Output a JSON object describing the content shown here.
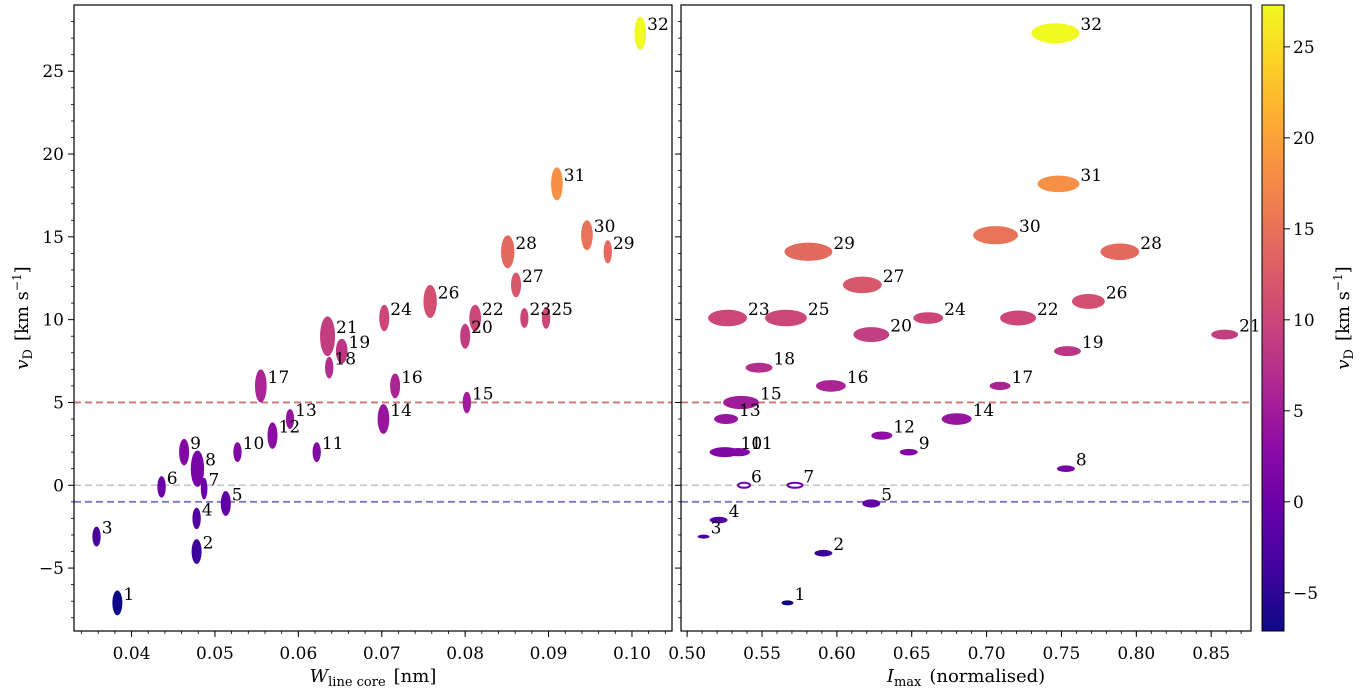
{
  "chart_data": [
    {
      "type": "scatter",
      "xlabel_main": "W",
      "xlabel_sub": "line core",
      "xlabel_unit": "[nm]",
      "ylabel_main": "v",
      "ylabel_sub": "D",
      "ylabel_unit": "[km s",
      "ylabel_exp": "−1",
      "ylabel_close": "]",
      "xlim": [
        0.0331,
        0.1048
      ],
      "ylim": [
        -8.8,
        29.0
      ],
      "xticks": [
        0.04,
        0.05,
        0.06,
        0.07,
        0.08,
        0.09,
        0.1
      ],
      "xtick_labels": [
        "0.04",
        "0.05",
        "0.06",
        "0.07",
        "0.08",
        "0.09",
        "0.10"
      ],
      "yticks": [
        -5,
        0,
        5,
        10,
        15,
        20,
        25
      ],
      "ytick_labels": [
        "−5",
        "0",
        "5",
        "10",
        "15",
        "20",
        "25"
      ],
      "hlines": [
        {
          "y": 5,
          "color": "#cd7572"
        },
        {
          "y": 0,
          "color": "#c8c8c8"
        },
        {
          "y": -1,
          "color": "#7b78c7"
        }
      ],
      "points": [
        {
          "label": "1",
          "x": 0.0383,
          "y": -7.1,
          "xerr": 0.0006,
          "yerr": 0.75
        },
        {
          "label": "2",
          "x": 0.0478,
          "y": -4.0,
          "xerr": 0.0006,
          "yerr": 0.75
        },
        {
          "label": "3",
          "x": 0.0358,
          "y": -3.1,
          "xerr": 0.0005,
          "yerr": 0.6
        },
        {
          "label": "4",
          "x": 0.0478,
          "y": -2.0,
          "xerr": 0.0005,
          "yerr": 0.65
        },
        {
          "label": "5",
          "x": 0.0513,
          "y": -1.1,
          "xerr": 0.0006,
          "yerr": 0.75
        },
        {
          "label": "6",
          "x": 0.0436,
          "y": -0.1,
          "xerr": 0.0005,
          "yerr": 0.65
        },
        {
          "label": "7",
          "x": 0.0487,
          "y": -0.2,
          "xerr": 0.0004,
          "yerr": 0.65
        },
        {
          "label": "8",
          "x": 0.0479,
          "y": 1.0,
          "xerr": 0.0008,
          "yerr": 1.1
        },
        {
          "label": "9",
          "x": 0.0463,
          "y": 2.0,
          "xerr": 0.0006,
          "yerr": 0.8
        },
        {
          "label": "10",
          "x": 0.0527,
          "y": 2.0,
          "xerr": 0.0005,
          "yerr": 0.6
        },
        {
          "label": "11",
          "x": 0.0622,
          "y": 2.0,
          "xerr": 0.0005,
          "yerr": 0.6
        },
        {
          "label": "12",
          "x": 0.0569,
          "y": 3.0,
          "xerr": 0.0006,
          "yerr": 0.8
        },
        {
          "label": "13",
          "x": 0.059,
          "y": 4.0,
          "xerr": 0.0005,
          "yerr": 0.6
        },
        {
          "label": "14",
          "x": 0.0702,
          "y": 4.0,
          "xerr": 0.0007,
          "yerr": 0.9
        },
        {
          "label": "15",
          "x": 0.0802,
          "y": 5.0,
          "xerr": 0.0005,
          "yerr": 0.65
        },
        {
          "label": "16",
          "x": 0.0716,
          "y": 6.0,
          "xerr": 0.0006,
          "yerr": 0.75
        },
        {
          "label": "17",
          "x": 0.0555,
          "y": 6.0,
          "xerr": 0.0007,
          "yerr": 1.0
        },
        {
          "label": "18",
          "x": 0.0637,
          "y": 7.1,
          "xerr": 0.0005,
          "yerr": 0.65
        },
        {
          "label": "19",
          "x": 0.0652,
          "y": 8.1,
          "xerr": 0.0007,
          "yerr": 0.75
        },
        {
          "label": "20",
          "x": 0.08,
          "y": 9.0,
          "xerr": 0.0006,
          "yerr": 0.75
        },
        {
          "label": "21",
          "x": 0.0635,
          "y": 9.0,
          "xerr": 0.0009,
          "yerr": 1.2
        },
        {
          "label": "22",
          "x": 0.0812,
          "y": 10.1,
          "xerr": 0.0007,
          "yerr": 0.8
        },
        {
          "label": "23",
          "x": 0.0871,
          "y": 10.1,
          "xerr": 0.0005,
          "yerr": 0.6
        },
        {
          "label": "24",
          "x": 0.0703,
          "y": 10.1,
          "xerr": 0.0006,
          "yerr": 0.8
        },
        {
          "label": "25",
          "x": 0.0897,
          "y": 10.1,
          "xerr": 0.0005,
          "yerr": 0.65
        },
        {
          "label": "26",
          "x": 0.0758,
          "y": 11.1,
          "xerr": 0.0008,
          "yerr": 1.0
        },
        {
          "label": "27",
          "x": 0.0861,
          "y": 12.1,
          "xerr": 0.0006,
          "yerr": 0.75
        },
        {
          "label": "28",
          "x": 0.0851,
          "y": 14.1,
          "xerr": 0.0008,
          "yerr": 1.0
        },
        {
          "label": "29",
          "x": 0.0971,
          "y": 14.1,
          "xerr": 0.0005,
          "yerr": 0.7
        },
        {
          "label": "30",
          "x": 0.0946,
          "y": 15.1,
          "xerr": 0.0007,
          "yerr": 0.9
        },
        {
          "label": "31",
          "x": 0.091,
          "y": 18.2,
          "xerr": 0.0007,
          "yerr": 1.0
        },
        {
          "label": "32",
          "x": 0.101,
          "y": 27.3,
          "xerr": 0.0007,
          "yerr": 1.0
        }
      ]
    },
    {
      "type": "scatter",
      "xlabel_main": "I",
      "xlabel_sub": "max",
      "xlabel_unit": "(normalised)",
      "xlim": [
        0.4959,
        0.8766
      ],
      "ylim": [
        -8.8,
        29.0
      ],
      "xticks": [
        0.5,
        0.55,
        0.6,
        0.65,
        0.7,
        0.75,
        0.8,
        0.85
      ],
      "xtick_labels": [
        "0.50",
        "0.55",
        "0.60",
        "0.65",
        "0.70",
        "0.75",
        "0.80",
        "0.85"
      ],
      "hlines": [
        {
          "y": 5,
          "color": "#cd7572"
        },
        {
          "y": 0,
          "color": "#c8c8c8"
        },
        {
          "y": -1,
          "color": "#7b78c7"
        }
      ],
      "points": [
        {
          "label": "1",
          "x": 0.567,
          "y": -7.1,
          "xerr": 0.004,
          "yerr": 0.15
        },
        {
          "label": "2",
          "x": 0.591,
          "y": -4.1,
          "xerr": 0.006,
          "yerr": 0.2
        },
        {
          "label": "3",
          "x": 0.511,
          "y": -3.1,
          "xerr": 0.004,
          "yerr": 0.12
        },
        {
          "label": "4",
          "x": 0.521,
          "y": -2.1,
          "xerr": 0.006,
          "yerr": 0.2
        },
        {
          "label": "5",
          "x": 0.623,
          "y": -1.1,
          "xerr": 0.006,
          "yerr": 0.25
        },
        {
          "label": "6",
          "x": 0.538,
          "y": 0.0,
          "xerr": 0.004,
          "yerr": 0.15,
          "hollow": true
        },
        {
          "label": "7",
          "x": 0.572,
          "y": 0.0,
          "xerr": 0.005,
          "yerr": 0.15,
          "hollow": true
        },
        {
          "label": "8",
          "x": 0.753,
          "y": 1.0,
          "xerr": 0.006,
          "yerr": 0.2
        },
        {
          "label": "9",
          "x": 0.648,
          "y": 2.0,
          "xerr": 0.006,
          "yerr": 0.2
        },
        {
          "label": "10",
          "x": 0.525,
          "y": 2.0,
          "xerr": 0.01,
          "yerr": 0.3
        },
        {
          "label": "11",
          "x": 0.534,
          "y": 2.0,
          "xerr": 0.008,
          "yerr": 0.25
        },
        {
          "label": "12",
          "x": 0.63,
          "y": 3.0,
          "xerr": 0.007,
          "yerr": 0.25
        },
        {
          "label": "13",
          "x": 0.526,
          "y": 4.0,
          "xerr": 0.008,
          "yerr": 0.3
        },
        {
          "label": "14",
          "x": 0.68,
          "y": 4.0,
          "xerr": 0.01,
          "yerr": 0.35
        },
        {
          "label": "15",
          "x": 0.536,
          "y": 5.0,
          "xerr": 0.012,
          "yerr": 0.4
        },
        {
          "label": "16",
          "x": 0.596,
          "y": 6.0,
          "xerr": 0.01,
          "yerr": 0.35
        },
        {
          "label": "17",
          "x": 0.709,
          "y": 6.0,
          "xerr": 0.007,
          "yerr": 0.25
        },
        {
          "label": "18",
          "x": 0.548,
          "y": 7.1,
          "xerr": 0.009,
          "yerr": 0.3
        },
        {
          "label": "19",
          "x": 0.754,
          "y": 8.1,
          "xerr": 0.009,
          "yerr": 0.3
        },
        {
          "label": "20",
          "x": 0.623,
          "y": 9.1,
          "xerr": 0.012,
          "yerr": 0.45
        },
        {
          "label": "21",
          "x": 0.859,
          "y": 9.1,
          "xerr": 0.009,
          "yerr": 0.3
        },
        {
          "label": "22",
          "x": 0.721,
          "y": 10.1,
          "xerr": 0.012,
          "yerr": 0.45
        },
        {
          "label": "23",
          "x": 0.527,
          "y": 10.1,
          "xerr": 0.013,
          "yerr": 0.5
        },
        {
          "label": "24",
          "x": 0.661,
          "y": 10.1,
          "xerr": 0.01,
          "yerr": 0.35
        },
        {
          "label": "25",
          "x": 0.566,
          "y": 10.1,
          "xerr": 0.014,
          "yerr": 0.5
        },
        {
          "label": "26",
          "x": 0.768,
          "y": 11.1,
          "xerr": 0.011,
          "yerr": 0.45
        },
        {
          "label": "27",
          "x": 0.617,
          "y": 12.1,
          "xerr": 0.013,
          "yerr": 0.5
        },
        {
          "label": "28",
          "x": 0.789,
          "y": 14.1,
          "xerr": 0.013,
          "yerr": 0.5
        },
        {
          "label": "29",
          "x": 0.581,
          "y": 14.1,
          "xerr": 0.016,
          "yerr": 0.55
        },
        {
          "label": "30",
          "x": 0.706,
          "y": 15.1,
          "xerr": 0.015,
          "yerr": 0.55
        },
        {
          "label": "31",
          "x": 0.748,
          "y": 18.2,
          "xerr": 0.014,
          "yerr": 0.5
        },
        {
          "label": "32",
          "x": 0.746,
          "y": 27.3,
          "xerr": 0.016,
          "yerr": 0.6
        }
      ]
    }
  ],
  "colorbar": {
    "colormap": "plasma",
    "range": [
      -7.1,
      27.3
    ],
    "ticks": [
      -5,
      0,
      5,
      10,
      15,
      20,
      25
    ],
    "tick_labels": [
      "−5",
      "0",
      "5",
      "10",
      "15",
      "20",
      "25"
    ],
    "label_main": "v",
    "label_sub": "D",
    "label_unit": "[km s",
    "label_exp": "−1",
    "label_close": "]"
  }
}
